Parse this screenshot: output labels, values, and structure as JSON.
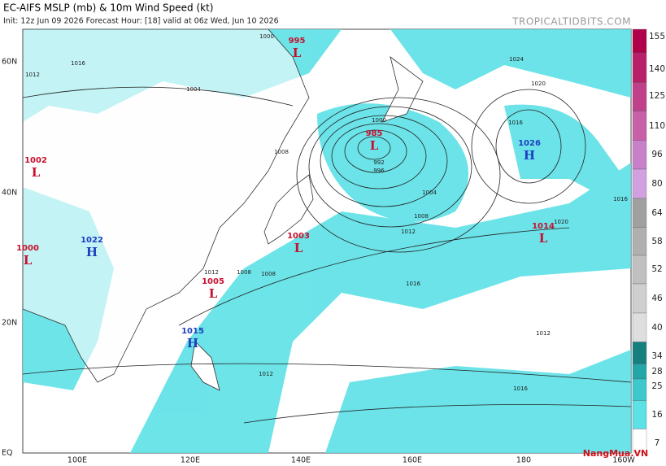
{
  "header": {
    "title": "EC-AIFS MSLP (mb) & 10m Wind Speed (kt)",
    "subtitle": "Init: 12z Jun 09 2026   Forecast Hour: [18]   valid at 06z Wed, Jun 10 2026",
    "source": "TROPICALTIDBITS.COM"
  },
  "map": {
    "lat_labels": [
      "60N",
      "40N",
      "20N",
      "EQ"
    ],
    "lon_labels": [
      "100E",
      "120E",
      "140E",
      "160E",
      "180",
      "160W"
    ],
    "centers": [
      {
        "letter": "L",
        "value": "995"
      },
      {
        "letter": "L",
        "value": "985"
      },
      {
        "letter": "H",
        "value": "1026"
      },
      {
        "letter": "L",
        "value": "1002"
      },
      {
        "letter": "L",
        "value": "1000"
      },
      {
        "letter": "H",
        "value": "1022"
      },
      {
        "letter": "L",
        "value": "1003"
      },
      {
        "letter": "L",
        "value": "1014"
      },
      {
        "letter": "L",
        "value": "1005"
      },
      {
        "letter": "H",
        "value": "1015"
      }
    ],
    "contour_labels": [
      "1000",
      "1016",
      "1012",
      "1004",
      "1008",
      "1000",
      "992",
      "996",
      "1004",
      "1008",
      "1012",
      "1016",
      "1020",
      "1024",
      "1016",
      "1020",
      "1016",
      "1012",
      "1012",
      "1016",
      "1012",
      "1008",
      "1008"
    ]
  },
  "colorbar": {
    "labels": [
      155,
      140,
      125,
      110,
      96,
      80,
      64,
      58,
      52,
      46,
      40,
      34,
      28,
      25,
      16,
      7
    ]
  },
  "logo": {
    "text": "NangMua.VN"
  }
}
